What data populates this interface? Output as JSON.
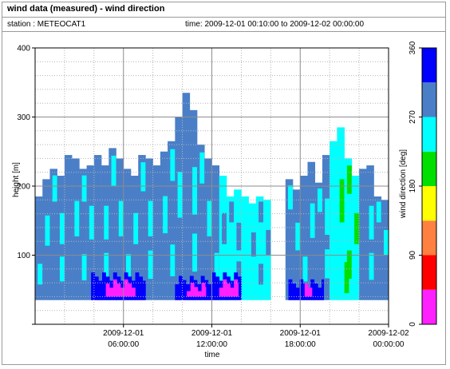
{
  "header": {
    "title": "wind data (measured) - wind direction",
    "station": "station : METEOCAT1",
    "time_range": "time: 2009-12-01 00:10:00 to 2009-12-02 00:00:00"
  },
  "chart_data": {
    "type": "heatmap",
    "xlabel": "time",
    "ylabel": "height [m]",
    "ylim": [
      0,
      400
    ],
    "y_ticks": [
      "100",
      "200",
      "300",
      "400"
    ],
    "x_ticks": [
      {
        "hour": 6,
        "line1": "2009-12-01",
        "line2": "06:00:00"
      },
      {
        "hour": 12,
        "line1": "2009-12-01",
        "line2": "12:00:00"
      },
      {
        "hour": 18,
        "line1": "2009-12-01",
        "line2": "18:00:00"
      },
      {
        "hour": 24,
        "line1": "2009-12-02",
        "line2": "00:00:00"
      }
    ],
    "xlim_hours": [
      0,
      24
    ],
    "grid": true,
    "colorbar": {
      "label": "wind direction [deg]",
      "ticks": [
        "0",
        "90",
        "180",
        "270",
        "360"
      ],
      "range": [
        0,
        360
      ],
      "bins": [
        {
          "from": 0,
          "to": 45,
          "color": "#ff20ff"
        },
        {
          "from": 45,
          "to": 90,
          "color": "#ff0000"
        },
        {
          "from": 90,
          "to": 135,
          "color": "#ff8040"
        },
        {
          "from": 135,
          "to": 180,
          "color": "#ffff00"
        },
        {
          "from": 180,
          "to": 225,
          "color": "#00e000"
        },
        {
          "from": 225,
          "to": 270,
          "color": "#00ffff"
        },
        {
          "from": 270,
          "to": 315,
          "color": "#4a7fc8"
        },
        {
          "from": 315,
          "to": 360,
          "color": "#0000ff"
        }
      ]
    },
    "min_height": 35,
    "profile_tops": [
      [
        0.0,
        185
      ],
      [
        0.5,
        210
      ],
      [
        1.0,
        225
      ],
      [
        1.5,
        215
      ],
      [
        2.0,
        245
      ],
      [
        2.5,
        240
      ],
      [
        3.0,
        225
      ],
      [
        3.5,
        230
      ],
      [
        4.0,
        245
      ],
      [
        4.5,
        230
      ],
      [
        5.0,
        255
      ],
      [
        5.5,
        240
      ],
      [
        6.0,
        225
      ],
      [
        6.5,
        215
      ],
      [
        7.0,
        245
      ],
      [
        7.5,
        240
      ],
      [
        8.0,
        230
      ],
      [
        8.5,
        250
      ],
      [
        9.0,
        265
      ],
      [
        9.5,
        300
      ],
      [
        10.0,
        335
      ],
      [
        10.5,
        310
      ],
      [
        11.0,
        260
      ],
      [
        11.5,
        240
      ],
      [
        12.0,
        230
      ],
      [
        12.5,
        215
      ],
      [
        13.0,
        185
      ],
      [
        13.5,
        195
      ],
      [
        14.0,
        185
      ],
      [
        14.5,
        175
      ],
      [
        15.0,
        185
      ],
      [
        15.5,
        180
      ],
      [
        16.0,
        null
      ],
      [
        16.5,
        null
      ],
      [
        17.0,
        210
      ],
      [
        17.5,
        195
      ],
      [
        18.0,
        215
      ],
      [
        18.5,
        235
      ],
      [
        19.0,
        205
      ],
      [
        19.5,
        245
      ],
      [
        20.0,
        265
      ],
      [
        20.5,
        285
      ],
      [
        21.0,
        240
      ],
      [
        21.5,
        215
      ],
      [
        22.0,
        225
      ],
      [
        22.5,
        230
      ],
      [
        23.0,
        185
      ],
      [
        23.5,
        180
      ]
    ],
    "segments": [
      {
        "hour_from": 0.0,
        "hour_to": 2.5,
        "dominant": "#4a7fc8",
        "accent": "#00ffff"
      },
      {
        "hour_from": 2.5,
        "hour_to": 6.5,
        "dominant": "#4a7fc8",
        "accent": "#00ffff"
      },
      {
        "hour_from": 6.5,
        "hour_to": 12.5,
        "dominant": "#4a7fc8",
        "accent": "#00ffff"
      },
      {
        "hour_from": 12.5,
        "hour_to": 16.0,
        "dominant": "#00ffff",
        "accent": "#4a7fc8"
      },
      {
        "hour_from": 17.0,
        "hour_to": 20.0,
        "dominant": "#4a7fc8",
        "accent": "#00ffff"
      },
      {
        "hour_from": 20.0,
        "hour_to": 22.0,
        "dominant": "#00ffff",
        "accent": "#00e000"
      },
      {
        "hour_from": 22.0,
        "hour_to": 24.0,
        "dominant": "#4a7fc8",
        "accent": "#00ffff"
      }
    ],
    "low_level_patches": [
      {
        "hour_from": 3.8,
        "hour_to": 7.5,
        "h_from": 35,
        "h_to": 75,
        "color": "#0000ff"
      },
      {
        "hour_from": 4.8,
        "hour_to": 6.8,
        "h_from": 40,
        "h_to": 65,
        "color": "#ff20ff"
      },
      {
        "hour_from": 9.5,
        "hour_to": 12.0,
        "h_from": 35,
        "h_to": 70,
        "color": "#0000ff"
      },
      {
        "hour_from": 10.3,
        "hour_to": 11.6,
        "h_from": 40,
        "h_to": 60,
        "color": "#ff20ff"
      },
      {
        "hour_from": 12.0,
        "hour_to": 14.0,
        "h_from": 35,
        "h_to": 75,
        "color": "#0000ff"
      },
      {
        "hour_from": 12.5,
        "hour_to": 13.8,
        "h_from": 40,
        "h_to": 65,
        "color": "#ff20ff"
      },
      {
        "hour_from": 17.2,
        "hour_to": 19.6,
        "h_from": 35,
        "h_to": 65,
        "color": "#0000ff"
      },
      {
        "hour_from": 18.3,
        "hour_to": 18.8,
        "h_from": 40,
        "h_to": 65,
        "color": "#ff20ff"
      },
      {
        "hour_from": 21.0,
        "hour_to": 21.3,
        "h_from": 45,
        "h_to": 90,
        "color": "#00e000"
      }
    ]
  }
}
